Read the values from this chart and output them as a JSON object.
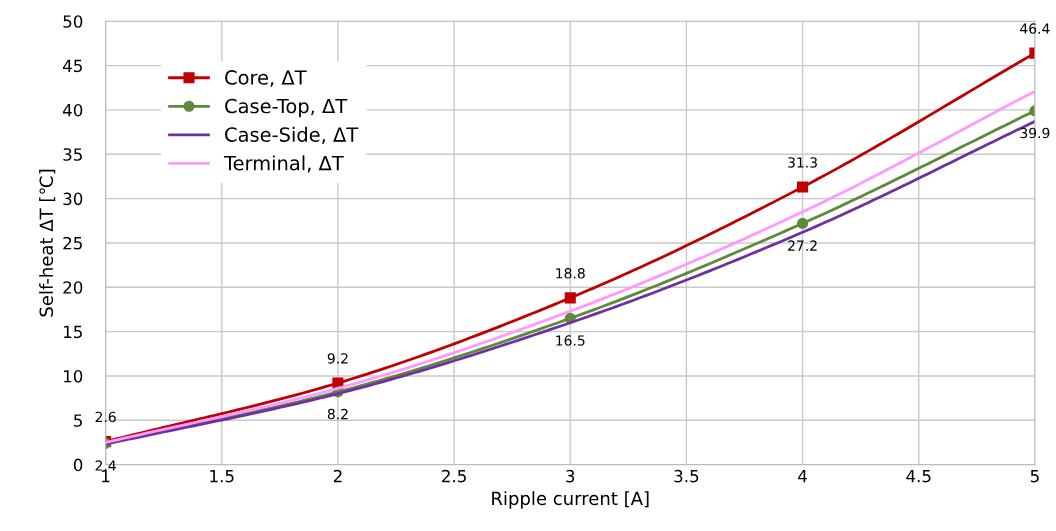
{
  "chart_data": {
    "type": "line",
    "xlabel": "Ripple current [A]",
    "ylabel": "Self-heat ΔT [℃]",
    "x": [
      1,
      2,
      3,
      4,
      5
    ],
    "series": [
      {
        "name": "Core, ΔT",
        "color": "#c00000",
        "marker": "square",
        "values": [
          2.6,
          9.2,
          18.8,
          31.3,
          46.4
        ],
        "value_labels": [
          "2.6",
          "9.2",
          "18.8",
          "31.3",
          "46.4"
        ]
      },
      {
        "name": "Case-Top, ΔT",
        "color": "#5b8a3a",
        "marker": "circle",
        "values": [
          2.4,
          8.2,
          16.5,
          27.2,
          39.9
        ],
        "value_labels": [
          "2.4",
          "8.2",
          "16.5",
          "27.2",
          "39.9"
        ]
      },
      {
        "name": "Case-Side, ΔT",
        "color": "#7030a0",
        "marker": "none",
        "values": [
          2.3,
          8.0,
          16.0,
          26.2,
          38.7
        ]
      },
      {
        "name": "Terminal, ΔT",
        "color": "#ff99ff",
        "marker": "none",
        "values": [
          2.5,
          8.6,
          17.3,
          28.5,
          42.1
        ]
      }
    ],
    "xlim": [
      1,
      5
    ],
    "xticks": [
      1,
      1.5,
      2,
      2.5,
      3,
      3.5,
      4,
      4.5,
      5
    ],
    "ylim": [
      0,
      50
    ],
    "yticks": [
      0,
      5,
      10,
      15,
      20,
      25,
      30,
      35,
      40,
      45,
      50
    ],
    "grid": true,
    "legend": "top left",
    "line_style": "solid"
  }
}
